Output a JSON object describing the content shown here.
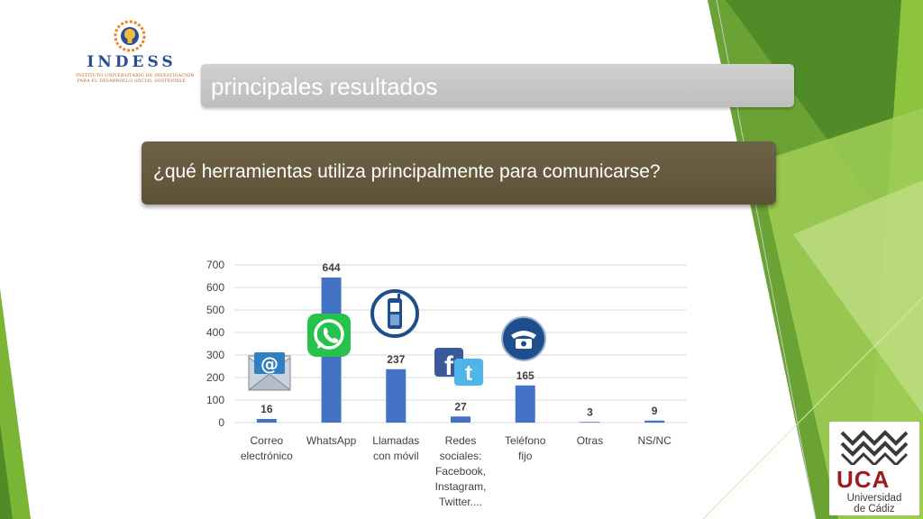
{
  "header": {
    "logo_text": "INDESS",
    "logo_subtitle_1": "INSTITUTO UNIVERSITARIO DE INVESTIGACIÓN",
    "logo_subtitle_2": "PARA EL DESARROLLO SOCIAL SOSTENIBLE"
  },
  "slide": {
    "title": "principales resultados",
    "question": "¿qué herramientas utiliza principalmente para comunicarse?"
  },
  "footer_logo": {
    "name": "UCA",
    "line1": "Universidad",
    "line2": "de Cádiz"
  },
  "colors": {
    "bar": "#4472c4",
    "title_bar": "#c8c8c8",
    "question_bar": "#665a3f",
    "green_dark": "#5a9a2a",
    "green_light": "#a6d05a"
  },
  "icons": [
    "email-icon",
    "whatsapp-icon",
    "mobile-phone-icon",
    "social-networks-icon",
    "landline-phone-icon"
  ],
  "chart_data": {
    "type": "bar",
    "categories": [
      [
        "Correo",
        "electrónico"
      ],
      [
        "WhatsApp"
      ],
      [
        "Llamadas",
        "con móvil"
      ],
      [
        "Redes",
        "sociales:",
        "Facebook,",
        "Instagram,",
        "Twitter...."
      ],
      [
        "Teléfono",
        "fijo"
      ],
      [
        "Otras"
      ],
      [
        "NS/NC"
      ]
    ],
    "values": [
      16,
      644,
      237,
      27,
      165,
      3,
      9
    ],
    "yticks": [
      "0",
      "100",
      "200",
      "300",
      "400",
      "500",
      "600",
      "700"
    ],
    "ylim": [
      0,
      700
    ],
    "grid": true,
    "legend": "none"
  }
}
